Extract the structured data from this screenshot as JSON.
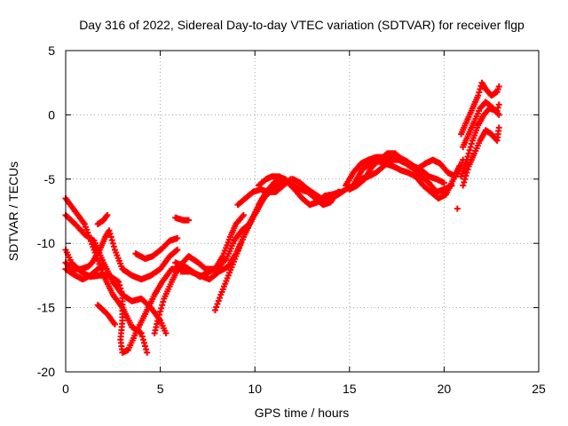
{
  "chart_data": {
    "type": "scatter",
    "title": "Day 316 of 2022, Sidereal Day-to-day VTEC variation (SDTVAR) for receiver flgp",
    "xlabel": "GPS time / hours",
    "ylabel": "SDTVAR / TECUs",
    "xlim": [
      0,
      25
    ],
    "ylim": [
      -20,
      5
    ],
    "xticks": [
      "0",
      "5",
      "10",
      "15",
      "20",
      "25"
    ],
    "yticks": [
      "5",
      "0",
      "-5",
      "-10",
      "-15",
      "-20"
    ],
    "grid": true,
    "marker": "plus",
    "color": "#ff0000",
    "series": [
      {
        "points": [
          [
            0.0,
            -6.5
          ],
          [
            0.5,
            -7.5
          ],
          [
            1.0,
            -8.5
          ],
          [
            1.5,
            -10.5
          ],
          [
            2.0,
            -12.5
          ],
          [
            2.5,
            -14.0
          ],
          [
            3.0,
            -15.0
          ],
          [
            3.5,
            -16.5
          ],
          [
            4.0,
            -17.0
          ],
          [
            4.3,
            -18.5
          ]
        ]
      },
      {
        "points": [
          [
            0.0,
            -7.8
          ],
          [
            0.5,
            -8.5
          ],
          [
            1.0,
            -9.3
          ],
          [
            1.5,
            -9.8
          ],
          [
            2.0,
            -11.5
          ],
          [
            2.5,
            -13.0
          ],
          [
            3.0,
            -14.0
          ],
          [
            3.5,
            -14.5
          ],
          [
            4.0,
            -14.3
          ],
          [
            4.5,
            -15.0
          ],
          [
            5.0,
            -16.0
          ],
          [
            5.3,
            -17.0
          ]
        ]
      },
      {
        "points": [
          [
            0.0,
            -10.5
          ],
          [
            0.3,
            -11.5
          ],
          [
            0.8,
            -12.2
          ],
          [
            1.3,
            -12.6
          ],
          [
            1.8,
            -12.5
          ],
          [
            2.3,
            -12.5
          ],
          [
            2.8,
            -13.0
          ],
          [
            3.0,
            -14.0
          ],
          [
            3.0,
            -16.0
          ],
          [
            2.9,
            -17.5
          ],
          [
            3.0,
            -18.5
          ],
          [
            3.3,
            -18.3
          ],
          [
            3.7,
            -17.0
          ],
          [
            4.2,
            -15.5
          ],
          [
            4.7,
            -14.0
          ],
          [
            5.1,
            -13.0
          ],
          [
            5.6,
            -12.0
          ],
          [
            6.0,
            -12.0
          ]
        ]
      },
      {
        "points": [
          [
            0.0,
            -11.5
          ],
          [
            0.3,
            -12.0
          ],
          [
            0.8,
            -12.0
          ],
          [
            1.2,
            -11.8
          ],
          [
            1.4,
            -11.5
          ],
          [
            1.8,
            -10.5
          ],
          [
            2.1,
            -9.5
          ],
          [
            2.3,
            -9.0
          ],
          [
            2.6,
            -10.5
          ],
          [
            3.0,
            -12.0
          ],
          [
            3.5,
            -12.5
          ],
          [
            4.0,
            -12.8
          ],
          [
            4.5,
            -12.5
          ],
          [
            5.0,
            -12.0
          ],
          [
            5.5,
            -11.0
          ],
          [
            5.9,
            -10.5
          ]
        ]
      },
      {
        "points": [
          [
            0.0,
            -12.0
          ],
          [
            0.4,
            -12.4
          ],
          [
            0.9,
            -12.8
          ],
          [
            1.3,
            -12.5
          ],
          [
            1.7,
            -12.0
          ],
          [
            2.0,
            -11.7
          ]
        ]
      },
      {
        "points": [
          [
            1.7,
            -8.5
          ],
          [
            2.0,
            -8.2
          ],
          [
            2.2,
            -7.8
          ]
        ]
      },
      {
        "points": [
          [
            1.7,
            -14.8
          ],
          [
            2.2,
            -15.5
          ],
          [
            2.6,
            -16.3
          ]
        ]
      },
      {
        "points": [
          [
            3.7,
            -10.8
          ],
          [
            4.2,
            -11.2
          ],
          [
            4.6,
            -11.0
          ],
          [
            5.1,
            -10.4
          ],
          [
            5.5,
            -9.8
          ],
          [
            5.9,
            -9.6
          ]
        ]
      },
      {
        "points": [
          [
            4.7,
            -17.0
          ],
          [
            4.9,
            -15.8
          ],
          [
            5.2,
            -14.3
          ],
          [
            5.6,
            -13.0
          ],
          [
            6.0,
            -11.8
          ],
          [
            6.5,
            -11.0
          ],
          [
            7.0,
            -11.5
          ],
          [
            7.4,
            -12.0
          ],
          [
            7.9,
            -12.0
          ],
          [
            8.3,
            -11.0
          ],
          [
            8.7,
            -9.5
          ],
          [
            9.0,
            -8.5
          ],
          [
            9.4,
            -7.8
          ]
        ]
      },
      {
        "points": [
          [
            5.8,
            -11.5
          ],
          [
            6.3,
            -11.8
          ],
          [
            6.7,
            -12.2
          ],
          [
            7.1,
            -12.6
          ],
          [
            7.6,
            -12.2
          ],
          [
            8.1,
            -11.8
          ],
          [
            8.5,
            -11.2
          ],
          [
            8.9,
            -9.8
          ],
          [
            9.3,
            -9.0
          ],
          [
            9.7,
            -8.5
          ],
          [
            10.1,
            -7.5
          ],
          [
            10.4,
            -6.5
          ],
          [
            10.8,
            -6.0
          ],
          [
            11.2,
            -5.8
          ]
        ]
      },
      {
        "points": [
          [
            6.1,
            -12.2
          ],
          [
            6.6,
            -12.2
          ],
          [
            7.1,
            -12.5
          ],
          [
            7.6,
            -12.8
          ],
          [
            8.1,
            -12.2
          ],
          [
            8.6,
            -11.8
          ],
          [
            9.0,
            -10.8
          ],
          [
            9.4,
            -9.5
          ],
          [
            9.8,
            -8.2
          ],
          [
            10.2,
            -7.2
          ],
          [
            10.6,
            -6.2
          ],
          [
            11.0,
            -5.5
          ],
          [
            11.3,
            -5.5
          ]
        ]
      },
      {
        "points": [
          [
            7.9,
            -15.2
          ],
          [
            8.2,
            -14.0
          ],
          [
            8.6,
            -12.5
          ],
          [
            9.0,
            -11.0
          ],
          [
            9.4,
            -9.5
          ],
          [
            9.8,
            -8.3
          ],
          [
            10.2,
            -7.0
          ],
          [
            10.6,
            -6.0
          ],
          [
            11.0,
            -5.3
          ],
          [
            11.4,
            -5.2
          ]
        ]
      },
      {
        "points": [
          [
            5.8,
            -8.0
          ],
          [
            6.2,
            -8.2
          ],
          [
            6.5,
            -8.2
          ]
        ]
      },
      {
        "points": [
          [
            9.1,
            -7.0
          ],
          [
            9.5,
            -6.5
          ],
          [
            9.9,
            -6.0
          ],
          [
            10.3,
            -5.8
          ],
          [
            10.7,
            -6.0
          ],
          [
            11.1,
            -6.0
          ],
          [
            11.5,
            -5.5
          ],
          [
            11.9,
            -5.0
          ]
        ]
      },
      {
        "points": [
          [
            10.2,
            -5.5
          ],
          [
            10.6,
            -5.0
          ],
          [
            10.9,
            -4.8
          ],
          [
            11.2,
            -4.8
          ],
          [
            11.6,
            -5.0
          ],
          [
            12.0,
            -5.5
          ],
          [
            12.4,
            -5.8
          ],
          [
            12.8,
            -6.0
          ],
          [
            13.2,
            -6.5
          ],
          [
            13.6,
            -7.0
          ],
          [
            14.0,
            -6.8
          ],
          [
            14.4,
            -6.0
          ]
        ]
      },
      {
        "points": [
          [
            11.3,
            -4.8
          ],
          [
            11.7,
            -5.2
          ],
          [
            12.1,
            -5.8
          ],
          [
            12.5,
            -6.5
          ],
          [
            12.9,
            -7.0
          ],
          [
            13.3,
            -6.8
          ],
          [
            13.7,
            -6.3
          ],
          [
            14.1,
            -6.2
          ],
          [
            14.5,
            -6.0
          ]
        ]
      },
      {
        "points": [
          [
            12.0,
            -5.0
          ],
          [
            12.4,
            -5.3
          ],
          [
            12.8,
            -5.8
          ],
          [
            13.2,
            -6.2
          ],
          [
            13.6,
            -6.6
          ],
          [
            14.0,
            -6.5
          ],
          [
            14.4,
            -6.2
          ],
          [
            14.8,
            -5.8
          ],
          [
            15.2,
            -5.5
          ],
          [
            15.6,
            -5.0
          ],
          [
            16.0,
            -4.8
          ],
          [
            16.4,
            -4.5
          ],
          [
            16.8,
            -4.0
          ],
          [
            17.2,
            -3.5
          ],
          [
            17.6,
            -3.5
          ],
          [
            18.0,
            -3.8
          ],
          [
            18.4,
            -4.2
          ],
          [
            18.8,
            -4.8
          ],
          [
            19.2,
            -5.3
          ],
          [
            19.6,
            -6.0
          ],
          [
            20.0,
            -5.8
          ],
          [
            20.4,
            -5.5
          ]
        ]
      },
      {
        "points": [
          [
            14.8,
            -5.5
          ],
          [
            15.2,
            -4.5
          ],
          [
            15.6,
            -3.8
          ],
          [
            16.0,
            -3.5
          ],
          [
            16.4,
            -3.3
          ],
          [
            16.8,
            -3.3
          ],
          [
            17.2,
            -3.4
          ],
          [
            17.6,
            -3.3
          ],
          [
            18.0,
            -3.6
          ],
          [
            18.4,
            -4.0
          ],
          [
            18.8,
            -4.3
          ],
          [
            19.2,
            -4.8
          ],
          [
            19.6,
            -5.0
          ],
          [
            20.0,
            -5.3
          ]
        ]
      },
      {
        "points": [
          [
            15.3,
            -5.2
          ],
          [
            15.7,
            -4.2
          ],
          [
            16.1,
            -3.8
          ],
          [
            16.5,
            -3.6
          ],
          [
            16.9,
            -3.8
          ],
          [
            17.3,
            -4.0
          ],
          [
            17.7,
            -4.3
          ],
          [
            18.1,
            -4.5
          ],
          [
            18.5,
            -4.8
          ],
          [
            18.9,
            -5.5
          ],
          [
            19.3,
            -6.0
          ],
          [
            19.7,
            -6.5
          ],
          [
            20.1,
            -6.2
          ],
          [
            20.5,
            -5.0
          ],
          [
            20.8,
            -4.0
          ]
        ]
      },
      {
        "points": [
          [
            15.0,
            -5.8
          ],
          [
            15.4,
            -5.5
          ],
          [
            15.8,
            -5.0
          ],
          [
            16.2,
            -4.0
          ],
          [
            16.6,
            -3.5
          ],
          [
            17.0,
            -3.0
          ],
          [
            17.4,
            -3.0
          ],
          [
            17.8,
            -3.5
          ],
          [
            18.2,
            -4.0
          ],
          [
            18.6,
            -4.2
          ],
          [
            19.0,
            -3.8
          ],
          [
            19.4,
            -3.5
          ],
          [
            19.8,
            -3.8
          ],
          [
            20.2,
            -4.5
          ],
          [
            20.6,
            -4.8
          ],
          [
            21.0,
            -3.5
          ]
        ]
      },
      {
        "points": [
          [
            20.7,
            -7.3
          ]
        ]
      },
      {
        "points": [
          [
            20.9,
            -1.5
          ],
          [
            21.2,
            -0.5
          ],
          [
            21.5,
            0.5
          ],
          [
            21.8,
            1.5
          ],
          [
            22.0,
            2.5
          ],
          [
            22.2,
            2.0
          ],
          [
            22.5,
            1.5
          ],
          [
            22.8,
            1.8
          ],
          [
            22.9,
            2.2
          ]
        ]
      },
      {
        "points": [
          [
            20.9,
            -4.8
          ],
          [
            21.2,
            -3.5
          ],
          [
            21.5,
            -2.0
          ],
          [
            21.8,
            -0.8
          ],
          [
            22.1,
            0.0
          ],
          [
            22.4,
            0.5
          ],
          [
            22.8,
            0.3
          ],
          [
            22.9,
            0.8
          ]
        ]
      },
      {
        "points": [
          [
            21.0,
            -2.5
          ],
          [
            21.3,
            -1.5
          ],
          [
            21.6,
            -0.5
          ],
          [
            21.9,
            0.5
          ],
          [
            22.2,
            1.0
          ],
          [
            22.6,
            0.5
          ],
          [
            22.9,
            0.0
          ]
        ]
      },
      {
        "points": [
          [
            21.0,
            -5.5
          ],
          [
            21.3,
            -4.0
          ],
          [
            21.6,
            -3.0
          ],
          [
            21.9,
            -2.0
          ],
          [
            22.2,
            -1.2
          ],
          [
            22.5,
            -1.5
          ],
          [
            22.8,
            -2.0
          ],
          [
            22.9,
            -1.0
          ]
        ]
      }
    ]
  }
}
